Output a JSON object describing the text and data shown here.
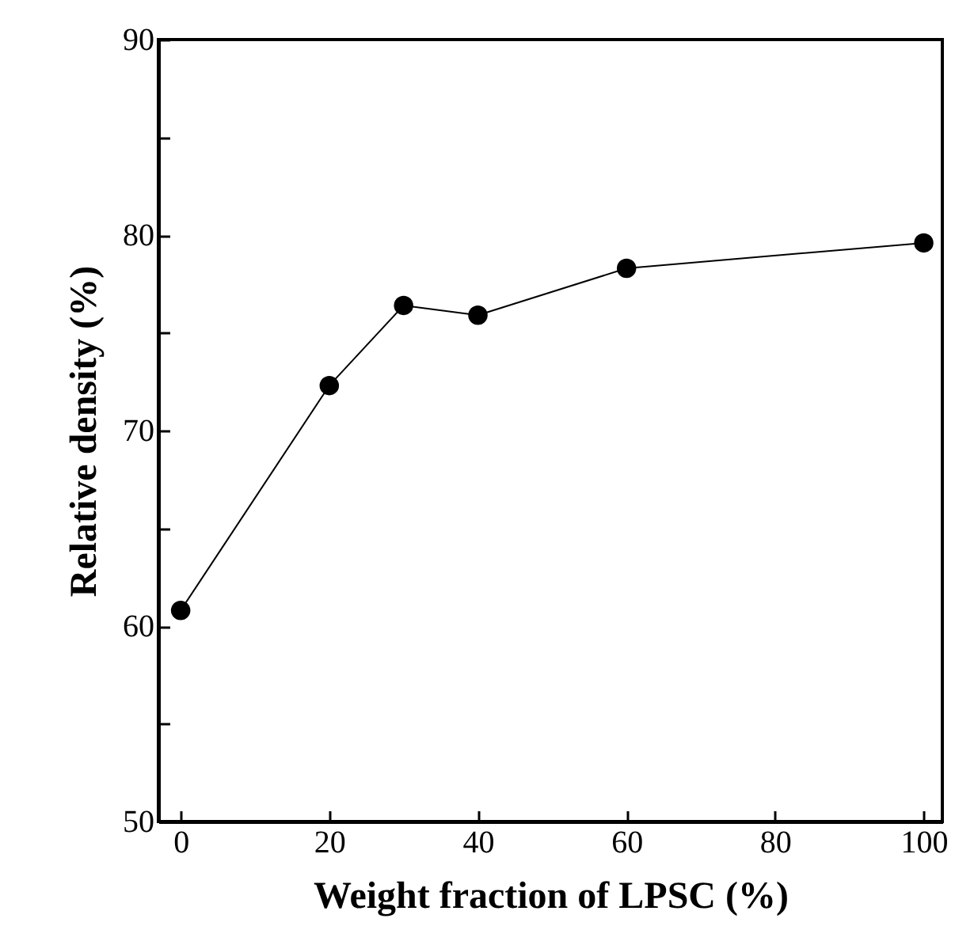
{
  "chart_data": {
    "type": "line",
    "xlabel": "Weight fraction of LPSC (%)",
    "ylabel": "Relative density (%)",
    "x": [
      0,
      20,
      30,
      40,
      60,
      100
    ],
    "series": [
      {
        "color": "#000000",
        "values": [
          60.8,
          72.3,
          76.4,
          75.9,
          78.3,
          79.6
        ]
      }
    ],
    "xlim": [
      -3,
      102.5
    ],
    "ylim": [
      50,
      90
    ],
    "xticks": [
      0,
      20,
      40,
      60,
      80,
      100
    ],
    "yticks": [
      50,
      {
        "value": 55,
        "label": null
      },
      60,
      {
        "value": 65,
        "label": null
      },
      70,
      {
        "value": 75,
        "label": null
      },
      80,
      {
        "value": 85,
        "label": null
      },
      90
    ],
    "marker": "circle",
    "line_style": "solid",
    "grid": false
  }
}
